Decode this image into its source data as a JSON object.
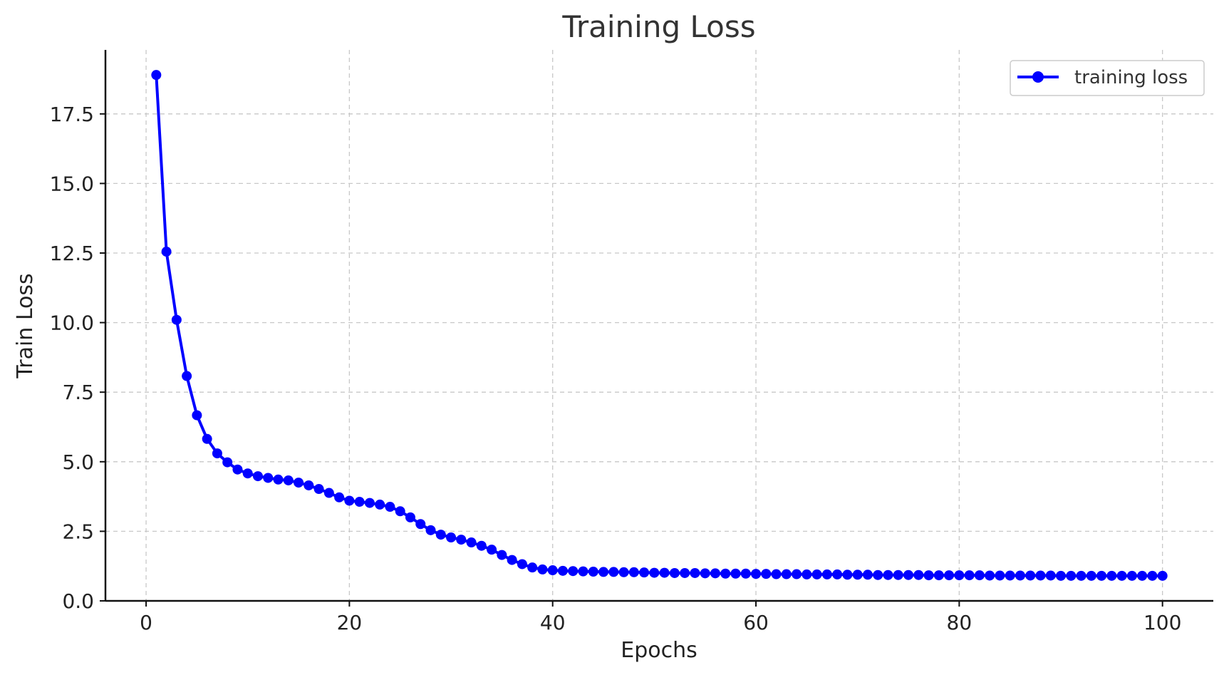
{
  "chart_data": {
    "type": "line",
    "title": "Training Loss",
    "xlabel": "Epochs",
    "ylabel": "Train Loss",
    "xlim": [
      -4,
      105
    ],
    "ylim": [
      0,
      19.8
    ],
    "x_ticks": [
      0,
      20,
      40,
      60,
      80,
      100
    ],
    "x_tick_labels": [
      "0",
      "20",
      "40",
      "60",
      "80",
      "100"
    ],
    "y_ticks": [
      0,
      2.5,
      5,
      7.5,
      10,
      12.5,
      15,
      17.5
    ],
    "y_tick_labels": [
      "0.0",
      "2.5",
      "5.0",
      "7.5",
      "10.0",
      "12.5",
      "15.0",
      "17.5"
    ],
    "grid": true,
    "legend_position": "top-right",
    "series": [
      {
        "name": "training loss",
        "color": "#0000ff",
        "marker": "circle",
        "x": [
          1,
          2,
          3,
          4,
          5,
          6,
          7,
          8,
          9,
          10,
          11,
          12,
          13,
          14,
          15,
          16,
          17,
          18,
          19,
          20,
          21,
          22,
          23,
          24,
          25,
          26,
          27,
          28,
          29,
          30,
          31,
          32,
          33,
          34,
          35,
          36,
          37,
          38,
          39,
          40,
          41,
          42,
          43,
          44,
          45,
          46,
          47,
          48,
          49,
          50,
          51,
          52,
          53,
          54,
          55,
          56,
          57,
          58,
          59,
          60,
          61,
          62,
          63,
          64,
          65,
          66,
          67,
          68,
          69,
          70,
          71,
          72,
          73,
          74,
          75,
          76,
          77,
          78,
          79,
          80,
          81,
          82,
          83,
          84,
          85,
          86,
          87,
          88,
          89,
          90,
          91,
          92,
          93,
          94,
          95,
          96,
          97,
          98,
          99,
          100
        ],
        "y": [
          18.9,
          12.55,
          10.1,
          8.08,
          6.67,
          5.82,
          5.3,
          4.98,
          4.72,
          4.58,
          4.48,
          4.42,
          4.36,
          4.33,
          4.25,
          4.15,
          4.02,
          3.88,
          3.72,
          3.6,
          3.56,
          3.52,
          3.46,
          3.38,
          3.22,
          3.0,
          2.76,
          2.54,
          2.38,
          2.28,
          2.2,
          2.1,
          1.98,
          1.84,
          1.65,
          1.47,
          1.32,
          1.2,
          1.13,
          1.1,
          1.08,
          1.07,
          1.06,
          1.05,
          1.04,
          1.04,
          1.03,
          1.03,
          1.02,
          1.01,
          1.01,
          1.0,
          1.0,
          1.0,
          0.99,
          0.99,
          0.98,
          0.98,
          0.98,
          0.97,
          0.97,
          0.96,
          0.96,
          0.96,
          0.95,
          0.95,
          0.95,
          0.95,
          0.94,
          0.94,
          0.94,
          0.93,
          0.93,
          0.93,
          0.93,
          0.93,
          0.92,
          0.92,
          0.92,
          0.92,
          0.92,
          0.92,
          0.91,
          0.91,
          0.91,
          0.91,
          0.91,
          0.91,
          0.91,
          0.9,
          0.9,
          0.9,
          0.9,
          0.9,
          0.9,
          0.9,
          0.9,
          0.9,
          0.9,
          0.9
        ]
      }
    ]
  }
}
